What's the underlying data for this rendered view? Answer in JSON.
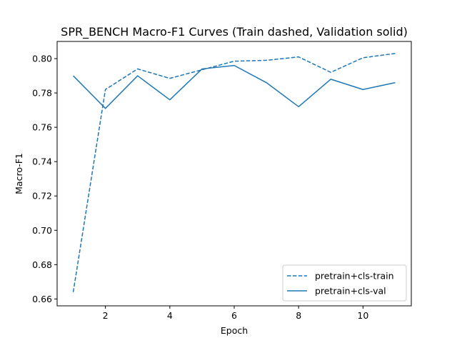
{
  "chart_data": {
    "type": "line",
    "title": "SPR_BENCH Macro-F1 Curves (Train dashed, Validation solid)",
    "xlabel": "Epoch",
    "ylabel": "Macro-F1",
    "xlim": [
      0.5,
      11.5
    ],
    "ylim": [
      0.656,
      0.81
    ],
    "xticks": [
      2,
      4,
      6,
      8,
      10
    ],
    "yticks": [
      0.66,
      0.68,
      0.7,
      0.72,
      0.74,
      0.76,
      0.78,
      0.8
    ],
    "xtick_labels": [
      "2",
      "4",
      "6",
      "8",
      "10"
    ],
    "ytick_labels": [
      "0.66",
      "0.68",
      "0.70",
      "0.72",
      "0.74",
      "0.76",
      "0.78",
      "0.80"
    ],
    "grid": false,
    "legend_position": "lower-right",
    "x": [
      1,
      2,
      3,
      4,
      5,
      6,
      7,
      8,
      9,
      10,
      11
    ],
    "series": [
      {
        "name": "pretrain+cls-train",
        "style": "dashed",
        "color": "#1f77b4",
        "values": [
          0.664,
          0.782,
          0.794,
          0.7885,
          0.7935,
          0.7985,
          0.799,
          0.801,
          0.792,
          0.8005,
          0.803
        ]
      },
      {
        "name": "pretrain+cls-val",
        "style": "solid",
        "color": "#1f77b4",
        "values": [
          0.79,
          0.771,
          0.79,
          0.776,
          0.794,
          0.796,
          0.786,
          0.772,
          0.788,
          0.782,
          0.786
        ]
      }
    ]
  }
}
